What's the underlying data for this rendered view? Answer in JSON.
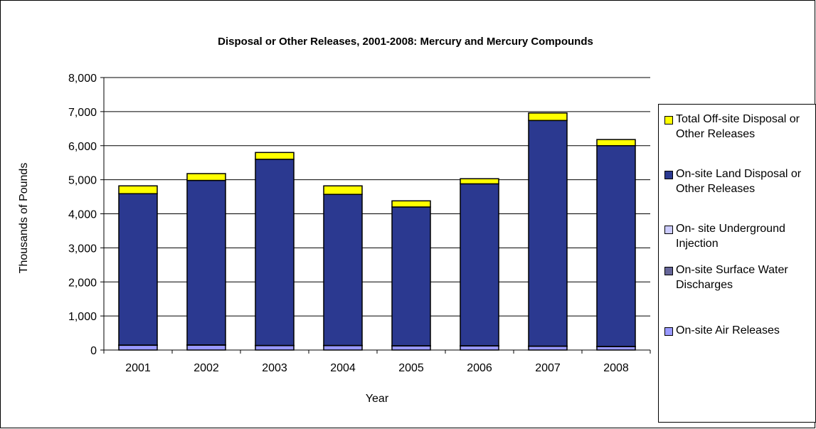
{
  "chart_data": {
    "type": "bar",
    "stacked": true,
    "title": "Disposal or Other Releases, 2001-2008: Mercury and Mercury Compounds",
    "xlabel": "Year",
    "ylabel": "Thousands of Pounds",
    "ylim": [
      0,
      8000
    ],
    "yticks": [
      "0",
      "1,000",
      "2,000",
      "3,000",
      "4,000",
      "5,000",
      "6,000",
      "7,000",
      "8,000"
    ],
    "ytick_values": [
      0,
      1000,
      2000,
      3000,
      4000,
      5000,
      6000,
      7000,
      8000
    ],
    "grid": true,
    "legend_position": "right",
    "categories": [
      "2001",
      "2002",
      "2003",
      "2004",
      "2005",
      "2006",
      "2007",
      "2008"
    ],
    "series": [
      {
        "name": "On-site Air Releases",
        "color": "#9999ff",
        "values": [
          140,
          145,
          130,
          130,
          120,
          120,
          110,
          100
        ]
      },
      {
        "name": "On-site Surface Water Discharges",
        "color": "#666699",
        "values": [
          3,
          3,
          3,
          3,
          3,
          3,
          3,
          3
        ]
      },
      {
        "name": "On- site Underground Injection",
        "color": "#ccccff",
        "values": [
          2,
          2,
          2,
          2,
          2,
          2,
          2,
          2
        ]
      },
      {
        "name": "On-site Land Disposal or Other Releases",
        "color": "#2b3990",
        "values": [
          4445,
          4830,
          5465,
          4435,
          4075,
          4755,
          6625,
          5895
        ]
      },
      {
        "name": "Total Off-site Disposal or Other Releases",
        "color": "#ffff00",
        "values": [
          230,
          200,
          200,
          250,
          180,
          150,
          220,
          180
        ]
      }
    ]
  }
}
